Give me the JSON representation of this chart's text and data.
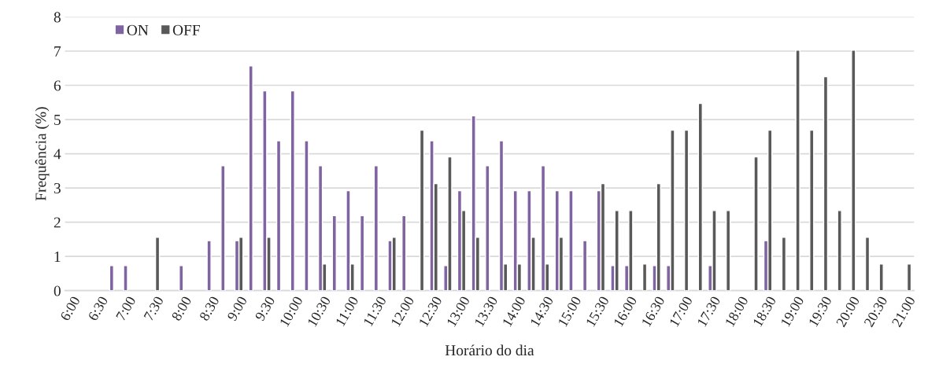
{
  "chart_data": {
    "type": "bar",
    "xlabel": "Horário do dia",
    "ylabel": "Frequência (%)",
    "categories": [
      "6:00",
      null,
      "6:30",
      null,
      "7:00",
      null,
      "7:30",
      null,
      "8:00",
      null,
      "8:30",
      null,
      "9:00",
      null,
      "9:30",
      null,
      "10:00",
      null,
      "10:30",
      null,
      "11:00",
      null,
      "11:30",
      null,
      "12:00",
      null,
      "12:30",
      null,
      "13:00",
      null,
      "13:30",
      null,
      "14:00",
      null,
      "14:30",
      null,
      "15:00",
      null,
      "15:30",
      null,
      "16:00",
      null,
      "16:30",
      null,
      "17:00",
      null,
      "17:30",
      null,
      "18:00",
      null,
      "18:30",
      null,
      "19:00",
      null,
      "19:30",
      null,
      "20:00",
      null,
      "20:30",
      null,
      "21:00"
    ],
    "series": [
      {
        "name": "ON",
        "color": "#8064a2",
        "values": [
          null,
          null,
          null,
          0.73,
          0.73,
          null,
          null,
          null,
          0.73,
          null,
          1.46,
          3.65,
          1.46,
          6.57,
          5.84,
          4.38,
          5.84,
          4.38,
          3.65,
          2.19,
          2.92,
          2.19,
          3.65,
          1.46,
          2.19,
          null,
          4.38,
          0.73,
          2.92,
          5.11,
          3.65,
          4.38,
          2.92,
          2.92,
          3.65,
          2.92,
          2.92,
          1.46,
          2.92,
          0.73,
          0.73,
          null,
          0.73,
          0.73,
          null,
          null,
          0.73,
          null,
          null,
          null,
          1.46,
          null,
          null,
          null,
          null,
          null,
          null,
          null,
          null,
          null,
          null
        ]
      },
      {
        "name": "OFF",
        "color": "#595959",
        "values": [
          null,
          null,
          null,
          null,
          null,
          null,
          1.56,
          null,
          null,
          null,
          null,
          null,
          1.56,
          null,
          1.56,
          null,
          null,
          null,
          0.78,
          null,
          0.78,
          null,
          null,
          1.56,
          null,
          4.69,
          3.13,
          3.91,
          2.34,
          1.56,
          null,
          0.78,
          0.78,
          1.56,
          0.78,
          1.56,
          null,
          null,
          3.13,
          2.34,
          2.34,
          0.78,
          3.13,
          4.69,
          4.69,
          5.47,
          2.34,
          2.34,
          null,
          3.91,
          4.69,
          1.56,
          7.03,
          4.69,
          6.25,
          2.34,
          7.03,
          1.56,
          0.78,
          null,
          0.78
        ]
      }
    ],
    "ylim": [
      0,
      8
    ],
    "yticks": [
      0,
      1,
      2,
      3,
      4,
      5,
      6,
      7,
      8
    ],
    "grid": "y",
    "legend": "top left"
  }
}
